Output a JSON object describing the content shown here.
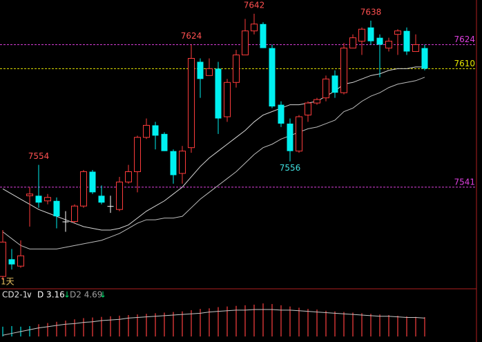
{
  "chart_data": {
    "type": "candlestick",
    "period_label": "1天",
    "ylim": [
      7483,
      7650
    ],
    "open": [
      7489,
      7499,
      7495,
      7536,
      7536,
      7533,
      7533,
      7521,
      7521,
      7530,
      7550,
      7536,
      7530,
      7528,
      7544,
      7550,
      7570,
      7577,
      7572,
      7562,
      7549,
      7564,
      7614,
      7606,
      7610,
      7582,
      7602,
      7618,
      7632,
      7636,
      7622,
      7589,
      7578,
      7562,
      7583,
      7590,
      7593,
      7606,
      7596,
      7622,
      7626,
      7634,
      7628,
      7622,
      7630,
      7632,
      7620,
      7622
    ],
    "high": [
      7516,
      7505,
      7510,
      7541,
      7554,
      7537,
      7535,
      7527,
      7531,
      7551,
      7551,
      7542,
      7536,
      7547,
      7554,
      7571,
      7581,
      7579,
      7573,
      7563,
      7565,
      7624,
      7616,
      7616,
      7614,
      7604,
      7621,
      7639,
      7642,
      7637,
      7624,
      7591,
      7581,
      7583,
      7591,
      7593,
      7606,
      7609,
      7625,
      7630,
      7634,
      7638,
      7630,
      7628,
      7633,
      7634,
      7630,
      7624
    ],
    "low": [
      7487,
      7493,
      7494,
      7518,
      7529,
      7531,
      7517,
      7515,
      7520,
      7529,
      7537,
      7531,
      7526,
      7527,
      7543,
      7538,
      7569,
      7563,
      7562,
      7543,
      7543,
      7561,
      7593,
      7606,
      7572,
      7579,
      7599,
      7618,
      7630,
      7622,
      7587,
      7576,
      7556,
      7561,
      7579,
      7589,
      7591,
      7593,
      7595,
      7622,
      7618,
      7624,
      7605,
      7620,
      7618,
      7618,
      7620,
      7609
    ],
    "close": [
      7509,
      7496,
      7501,
      7537,
      7532,
      7535,
      7524,
      7521,
      7530,
      7550,
      7538,
      7532,
      7530,
      7544,
      7550,
      7570,
      7577,
      7571,
      7562,
      7548,
      7562,
      7616,
      7604,
      7610,
      7581,
      7602,
      7618,
      7632,
      7636,
      7622,
      7588,
      7578,
      7562,
      7582,
      7590,
      7592,
      7604,
      7596,
      7622,
      7628,
      7633,
      7626,
      7624,
      7626,
      7632,
      7620,
      7624,
      7610
    ],
    "up_color": "#ff3c3c",
    "down_color": "#00f0f0",
    "flat_color": "#ffffff",
    "series": [
      {
        "color": "#d8d8d8",
        "values": [
          7540,
          7537,
          7534,
          7531,
          7528,
          7526,
          7524,
          7522,
          7520,
          7518,
          7517,
          7516,
          7516,
          7517,
          7519,
          7523,
          7527,
          7530,
          7533,
          7537,
          7541,
          7547,
          7553,
          7558,
          7562,
          7566,
          7570,
          7574,
          7579,
          7583,
          7585,
          7587,
          7589,
          7589,
          7590,
          7591,
          7594,
          7597,
          7601,
          7602,
          7604,
          7606,
          7607,
          7609,
          7610,
          7610,
          7611,
          7611
        ]
      },
      {
        "color": "#bdbdbd",
        "values": [
          7515,
          7511,
          7507,
          7505,
          7505,
          7505,
          7505,
          7506,
          7507,
          7508,
          7509,
          7510,
          7512,
          7514,
          7517,
          7520,
          7522,
          7522,
          7523,
          7523,
          7524,
          7529,
          7534,
          7538,
          7542,
          7546,
          7550,
          7555,
          7560,
          7564,
          7566,
          7569,
          7571,
          7573,
          7575,
          7576,
          7578,
          7580,
          7585,
          7587,
          7591,
          7594,
          7596,
          7599,
          7601,
          7602,
          7603,
          7605
        ]
      }
    ],
    "levels": [
      {
        "value": 7624,
        "color": "#e040e0"
      },
      {
        "value": 7610,
        "color": "#e8e800"
      },
      {
        "value": 7541,
        "color": "#e040e0"
      }
    ],
    "high_labels": [
      7554,
      7624,
      7642,
      7638
    ],
    "low_labels": [
      7556
    ],
    "indicator": {
      "name": "CD2-1",
      "d_label": "D 3.16",
      "d2_label": "D2 4.69",
      "arrow": "↓",
      "ylim": [
        0,
        7
      ],
      "bars": {
        "values": [
          1.6,
          1.7,
          1.6,
          1.7,
          2.0,
          2.2,
          2.4,
          2.6,
          2.8,
          3.0,
          3.1,
          3.2,
          3.3,
          3.4,
          3.5,
          3.6,
          3.7,
          3.8,
          3.9,
          4.0,
          4.1,
          4.3,
          4.5,
          4.6,
          4.8,
          4.9,
          5.0,
          5.1,
          5.2,
          5.4,
          5.3,
          5.1,
          4.9,
          4.7,
          4.5,
          4.4,
          4.2,
          4.1,
          4.0,
          3.9,
          3.8,
          3.7,
          3.6,
          3.5,
          3.4,
          3.3,
          3.2,
          3.16
        ],
        "colors": [
          "#00e0e0",
          "#00e0e0",
          "#00e0e0",
          "#00e0e0",
          "#ff4040",
          "#ff4040",
          "#ff4040",
          "#ff4040",
          "#ff4040",
          "#ff4040",
          "#ff4040",
          "#ff4040",
          "#ff4040",
          "#ff4040",
          "#ff4040",
          "#ff4040",
          "#ff4040",
          "#ff4040",
          "#ff4040",
          "#ff4040",
          "#ff4040",
          "#ff4040",
          "#ff4040",
          "#ff4040",
          "#ff4040",
          "#ff4040",
          "#ff4040",
          "#ff4040",
          "#ff4040",
          "#ff4040",
          "#ff4040",
          "#ff4040",
          "#ff4040",
          "#ff4040",
          "#ff4040",
          "#ff4040",
          "#ff4040",
          "#ff4040",
          "#ff4040",
          "#ff4040",
          "#ff4040",
          "#ff4040",
          "#ff4040",
          "#ff4040",
          "#ff4040",
          "#ff4040",
          "#ff4040",
          "#ff4040"
        ]
      },
      "line": {
        "color": "#c8c8c8",
        "values": [
          0.2,
          0.5,
          0.8,
          1.1,
          1.4,
          1.6,
          1.8,
          2.0,
          2.1,
          2.3,
          2.4,
          2.6,
          2.7,
          2.8,
          3.0,
          3.1,
          3.2,
          3.3,
          3.4,
          3.5,
          3.6,
          3.7,
          3.8,
          4.0,
          4.1,
          4.2,
          4.3,
          4.3,
          4.4,
          4.4,
          4.4,
          4.3,
          4.3,
          4.2,
          4.1,
          4.0,
          3.9,
          3.8,
          3.7,
          3.6,
          3.5,
          3.4,
          3.3,
          3.3,
          3.2,
          3.1,
          3.1,
          3.0
        ]
      }
    }
  }
}
